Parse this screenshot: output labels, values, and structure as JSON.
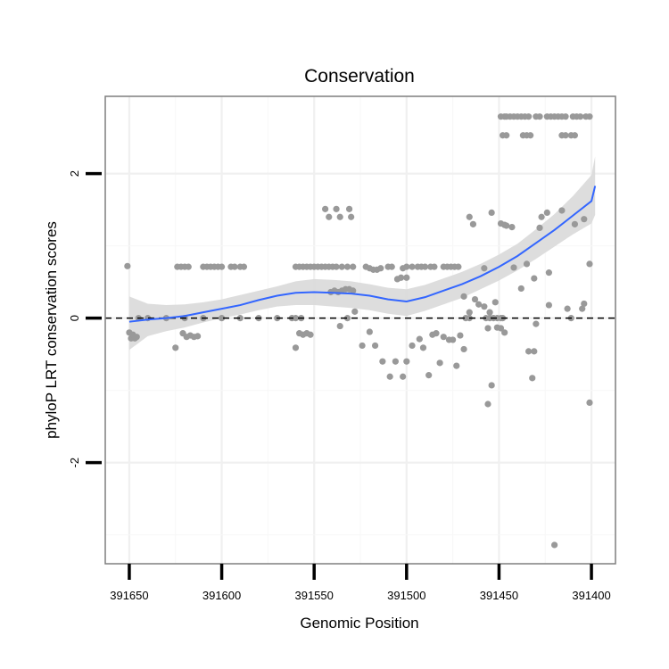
{
  "chart_data": {
    "type": "scatter",
    "title": "Conservation",
    "xlabel": "Genomic Position",
    "ylabel": "phyloP LRT conservation scores",
    "x_reversed": true,
    "xlim": [
      391663,
      391387
    ],
    "ylim": [
      -3.4,
      3.07
    ],
    "x_ticks": [
      391650,
      391600,
      391550,
      391500,
      391450,
      391400
    ],
    "x_tick_labels": [
      "391650",
      "391600",
      "391550",
      "391500",
      "391450",
      "391400"
    ],
    "y_ticks": [
      -2,
      0,
      2
    ],
    "y_tick_labels": [
      "-2",
      "0",
      "2"
    ],
    "y_minor_gridlines": [
      -3,
      -1,
      1
    ],
    "reference_line": {
      "y": 0,
      "style": "dashed"
    },
    "point_color": "#999999",
    "smooth_color": "#3366ff",
    "band_color": "#d9d9d9",
    "points": [
      [
        391651,
        0.72
      ],
      [
        391650,
        -0.2
      ],
      [
        391649,
        -0.28
      ],
      [
        391648,
        -0.23
      ],
      [
        391647,
        -0.28
      ],
      [
        391646,
        -0.26
      ],
      [
        391645,
        0.0
      ],
      [
        391640,
        0.0
      ],
      [
        391630,
        0.0
      ],
      [
        391620,
        0.0
      ],
      [
        391610,
        0.0
      ],
      [
        391600,
        0.0
      ],
      [
        391590,
        0.0
      ],
      [
        391580,
        0.0
      ],
      [
        391570,
        0.0
      ],
      [
        391625,
        -0.41
      ],
      [
        391624,
        0.71
      ],
      [
        391622,
        0.71
      ],
      [
        391620,
        0.71
      ],
      [
        391618,
        0.71
      ],
      [
        391621,
        -0.21
      ],
      [
        391619,
        -0.26
      ],
      [
        391617,
        -0.24
      ],
      [
        391615,
        -0.26
      ],
      [
        391613,
        -0.25
      ],
      [
        391610,
        0.71
      ],
      [
        391608,
        0.71
      ],
      [
        391606,
        0.71
      ],
      [
        391604,
        0.71
      ],
      [
        391602,
        0.71
      ],
      [
        391600,
        0.71
      ],
      [
        391595,
        0.71
      ],
      [
        391593,
        0.71
      ],
      [
        391590,
        0.71
      ],
      [
        391588,
        0.71
      ],
      [
        391560,
        -0.41
      ],
      [
        391558,
        -0.21
      ],
      [
        391556,
        -0.23
      ],
      [
        391554,
        -0.21
      ],
      [
        391552,
        -0.23
      ],
      [
        391562,
        0.0
      ],
      [
        391560,
        0.0
      ],
      [
        391557,
        0.0
      ],
      [
        391560,
        0.71
      ],
      [
        391558,
        0.71
      ],
      [
        391556,
        0.71
      ],
      [
        391554,
        0.71
      ],
      [
        391552,
        0.71
      ],
      [
        391550,
        0.71
      ],
      [
        391548,
        0.71
      ],
      [
        391546,
        0.71
      ],
      [
        391544,
        0.71
      ],
      [
        391542,
        0.71
      ],
      [
        391540,
        0.71
      ],
      [
        391538,
        0.71
      ],
      [
        391535,
        0.71
      ],
      [
        391532,
        0.71
      ],
      [
        391529,
        0.71
      ],
      [
        391544,
        1.51
      ],
      [
        391542,
        1.4
      ],
      [
        391538,
        1.51
      ],
      [
        391536,
        1.4
      ],
      [
        391531,
        1.51
      ],
      [
        391530,
        1.4
      ],
      [
        391541,
        0.36
      ],
      [
        391539,
        0.38
      ],
      [
        391537,
        0.36
      ],
      [
        391535,
        0.38
      ],
      [
        391533,
        0.4
      ],
      [
        391531,
        0.4
      ],
      [
        391529,
        0.38
      ],
      [
        391536,
        -0.11
      ],
      [
        391532,
        0.0
      ],
      [
        391528,
        0.09
      ],
      [
        391524,
        -0.38
      ],
      [
        391522,
        0.71
      ],
      [
        391520,
        0.69
      ],
      [
        391518,
        0.67
      ],
      [
        391516,
        0.67
      ],
      [
        391514,
        0.69
      ],
      [
        391510,
        0.71
      ],
      [
        391508,
        0.71
      ],
      [
        391502,
        0.69
      ],
      [
        391500,
        0.71
      ],
      [
        391497,
        0.71
      ],
      [
        391494,
        0.71
      ],
      [
        391492,
        0.71
      ],
      [
        391490,
        0.71
      ],
      [
        391487,
        0.71
      ],
      [
        391485,
        0.71
      ],
      [
        391480,
        0.71
      ],
      [
        391478,
        0.71
      ],
      [
        391476,
        0.71
      ],
      [
        391474,
        0.71
      ],
      [
        391472,
        0.71
      ],
      [
        391505,
        0.54
      ],
      [
        391503,
        0.56
      ],
      [
        391500,
        0.56
      ],
      [
        391520,
        -0.19
      ],
      [
        391517,
        -0.38
      ],
      [
        391513,
        -0.6
      ],
      [
        391509,
        -0.81
      ],
      [
        391506,
        -0.6
      ],
      [
        391502,
        -0.81
      ],
      [
        391500,
        -0.6
      ],
      [
        391497,
        -0.38
      ],
      [
        391493,
        -0.29
      ],
      [
        391491,
        -0.41
      ],
      [
        391488,
        -0.79
      ],
      [
        391486,
        -0.23
      ],
      [
        391484,
        -0.21
      ],
      [
        391482,
        -0.62
      ],
      [
        391480,
        -0.26
      ],
      [
        391477,
        -0.3
      ],
      [
        391475,
        -0.3
      ],
      [
        391473,
        -0.66
      ],
      [
        391471,
        -0.24
      ],
      [
        391468,
        0.0
      ],
      [
        391466,
        0.0
      ],
      [
        391469,
        0.3
      ],
      [
        391466,
        0.08
      ],
      [
        391463,
        0.26
      ],
      [
        391461,
        0.19
      ],
      [
        391458,
        0.16
      ],
      [
        391456,
        -0.14
      ],
      [
        391469,
        -0.43
      ],
      [
        391466,
        1.4
      ],
      [
        391464,
        1.3
      ],
      [
        391457,
        0.0
      ],
      [
        391455,
        0.0
      ],
      [
        391453,
        0.0
      ],
      [
        391451,
        0.0
      ],
      [
        391454,
        1.46
      ],
      [
        391455,
        0.08
      ],
      [
        391452,
        0.22
      ],
      [
        391449,
        0.0
      ],
      [
        391458,
        0.69
      ],
      [
        391456,
        -1.19
      ],
      [
        391454,
        -0.93
      ],
      [
        391451,
        -0.13
      ],
      [
        391449,
        -0.14
      ],
      [
        391448,
        0.0
      ],
      [
        391447,
        -0.2
      ],
      [
        391449,
        1.31
      ],
      [
        391447,
        1.29
      ],
      [
        391446,
        1.28
      ],
      [
        391443,
        1.26
      ],
      [
        391442,
        0.7
      ],
      [
        391449,
        2.79
      ],
      [
        391447,
        2.79
      ],
      [
        391446,
        2.79
      ],
      [
        391444,
        2.79
      ],
      [
        391442,
        2.79
      ],
      [
        391440,
        2.79
      ],
      [
        391438,
        2.79
      ],
      [
        391436,
        2.79
      ],
      [
        391434,
        2.79
      ],
      [
        391430,
        2.79
      ],
      [
        391428,
        2.79
      ],
      [
        391424,
        2.79
      ],
      [
        391422,
        2.79
      ],
      [
        391420,
        2.79
      ],
      [
        391418,
        2.79
      ],
      [
        391416,
        2.79
      ],
      [
        391414,
        2.79
      ],
      [
        391410,
        2.79
      ],
      [
        391408,
        2.79
      ],
      [
        391406,
        2.79
      ],
      [
        391403,
        2.79
      ],
      [
        391448,
        2.53
      ],
      [
        391446,
        2.53
      ],
      [
        391437,
        2.53
      ],
      [
        391435,
        2.53
      ],
      [
        391433,
        2.53
      ],
      [
        391416,
        2.53
      ],
      [
        391414,
        2.53
      ],
      [
        391411,
        2.53
      ],
      [
        391409,
        2.53
      ],
      [
        391438,
        0.41
      ],
      [
        391435,
        0.75
      ],
      [
        391431,
        0.55
      ],
      [
        391434,
        -0.46
      ],
      [
        391431,
        -0.46
      ],
      [
        391432,
        -0.83
      ],
      [
        391430,
        -0.08
      ],
      [
        391427,
        1.4
      ],
      [
        391428,
        1.25
      ],
      [
        391424,
        1.46
      ],
      [
        391423,
        0.63
      ],
      [
        391423,
        0.18
      ],
      [
        391420,
        -3.14
      ],
      [
        391416,
        1.49
      ],
      [
        391413,
        0.13
      ],
      [
        391411,
        0.0
      ],
      [
        391409,
        1.3
      ],
      [
        391405,
        0.13
      ],
      [
        391404,
        0.2
      ],
      [
        391401,
        -1.17
      ],
      [
        391401,
        0.75
      ],
      [
        391404,
        1.37
      ],
      [
        391401,
        2.79
      ]
    ],
    "smooth": [
      [
        391650,
        -0.05
      ],
      [
        391640,
        -0.02
      ],
      [
        391630,
        0.0
      ],
      [
        391620,
        0.03
      ],
      [
        391610,
        0.08
      ],
      [
        391600,
        0.13
      ],
      [
        391590,
        0.18
      ],
      [
        391580,
        0.25
      ],
      [
        391570,
        0.31
      ],
      [
        391560,
        0.35
      ],
      [
        391550,
        0.36
      ],
      [
        391540,
        0.35
      ],
      [
        391530,
        0.34
      ],
      [
        391520,
        0.31
      ],
      [
        391510,
        0.26
      ],
      [
        391500,
        0.23
      ],
      [
        391490,
        0.29
      ],
      [
        391480,
        0.38
      ],
      [
        391470,
        0.47
      ],
      [
        391460,
        0.58
      ],
      [
        391450,
        0.71
      ],
      [
        391440,
        0.86
      ],
      [
        391430,
        1.04
      ],
      [
        391420,
        1.22
      ],
      [
        391410,
        1.42
      ],
      [
        391400,
        1.62
      ],
      [
        391398,
        1.83
      ]
    ],
    "band_upper": [
      [
        391650,
        0.3
      ],
      [
        391640,
        0.2
      ],
      [
        391630,
        0.18
      ],
      [
        391620,
        0.19
      ],
      [
        391610,
        0.22
      ],
      [
        391600,
        0.26
      ],
      [
        391590,
        0.32
      ],
      [
        391580,
        0.38
      ],
      [
        391570,
        0.44
      ],
      [
        391560,
        0.51
      ],
      [
        391550,
        0.54
      ],
      [
        391540,
        0.53
      ],
      [
        391530,
        0.51
      ],
      [
        391520,
        0.47
      ],
      [
        391510,
        0.42
      ],
      [
        391500,
        0.4
      ],
      [
        391490,
        0.46
      ],
      [
        391480,
        0.55
      ],
      [
        391470,
        0.64
      ],
      [
        391460,
        0.75
      ],
      [
        391450,
        0.88
      ],
      [
        391440,
        1.03
      ],
      [
        391430,
        1.23
      ],
      [
        391420,
        1.44
      ],
      [
        391410,
        1.69
      ],
      [
        391400,
        1.98
      ],
      [
        391398,
        2.24
      ]
    ],
    "band_lower": [
      [
        391650,
        -0.44
      ],
      [
        391640,
        -0.25
      ],
      [
        391630,
        -0.18
      ],
      [
        391620,
        -0.13
      ],
      [
        391610,
        -0.06
      ],
      [
        391600,
        0.0
      ],
      [
        391590,
        0.05
      ],
      [
        391580,
        0.11
      ],
      [
        391570,
        0.16
      ],
      [
        391560,
        0.18
      ],
      [
        391550,
        0.18
      ],
      [
        391540,
        0.16
      ],
      [
        391530,
        0.14
      ],
      [
        391520,
        0.11
      ],
      [
        391510,
        0.06
      ],
      [
        391500,
        0.03
      ],
      [
        391490,
        0.1
      ],
      [
        391480,
        0.19
      ],
      [
        391470,
        0.28
      ],
      [
        391460,
        0.4
      ],
      [
        391450,
        0.52
      ],
      [
        391440,
        0.66
      ],
      [
        391430,
        0.82
      ],
      [
        391420,
        0.99
      ],
      [
        391410,
        1.16
      ],
      [
        391400,
        1.31
      ],
      [
        391398,
        1.43
      ]
    ]
  }
}
